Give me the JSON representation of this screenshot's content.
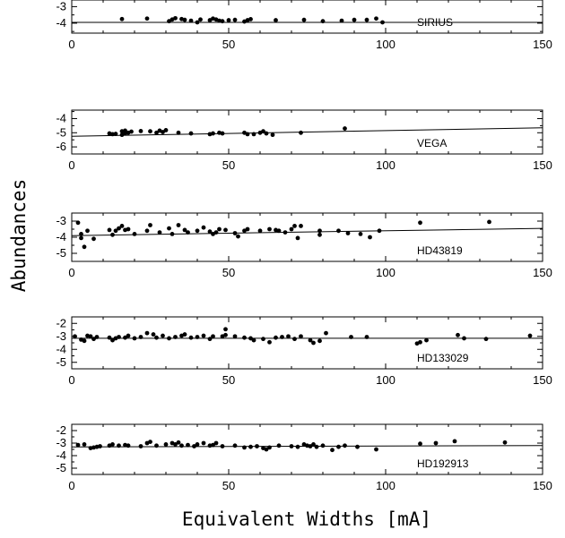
{
  "figure": {
    "ylabel": "Abundances",
    "xlabel": "Equivalent Widths [mA]"
  },
  "chart_data": [
    {
      "type": "scatter",
      "label": "SIRIUS",
      "xlim": [
        0,
        150
      ],
      "ylim": [
        -4.6,
        -2.6
      ],
      "xticks": [
        0,
        50,
        100,
        150
      ],
      "yticks": [
        -3,
        -4
      ],
      "fit": {
        "x": [
          0,
          150
        ],
        "y": [
          -3.95,
          -3.95
        ]
      },
      "points": [
        [
          16,
          -3.75
        ],
        [
          24,
          -3.72
        ],
        [
          31,
          -3.88
        ],
        [
          32,
          -3.78
        ],
        [
          33,
          -3.7
        ],
        [
          35,
          -3.75
        ],
        [
          36,
          -3.8
        ],
        [
          38,
          -3.85
        ],
        [
          40,
          -3.95
        ],
        [
          41,
          -3.78
        ],
        [
          44,
          -3.82
        ],
        [
          45,
          -3.72
        ],
        [
          46,
          -3.78
        ],
        [
          47,
          -3.85
        ],
        [
          48,
          -3.88
        ],
        [
          50,
          -3.82
        ],
        [
          52,
          -3.8
        ],
        [
          55,
          -3.9
        ],
        [
          56,
          -3.82
        ],
        [
          57,
          -3.76
        ],
        [
          65,
          -3.82
        ],
        [
          74,
          -3.8
        ],
        [
          80,
          -3.88
        ],
        [
          86,
          -3.85
        ],
        [
          90,
          -3.8
        ],
        [
          94,
          -3.8
        ],
        [
          97,
          -3.72
        ],
        [
          99,
          -3.95
        ]
      ]
    },
    {
      "type": "scatter",
      "label": "VEGA",
      "xlim": [
        0,
        150
      ],
      "ylim": [
        -6.5,
        -3.4
      ],
      "xticks": [
        0,
        50,
        100,
        150
      ],
      "yticks": [
        -4,
        -5,
        -6
      ],
      "fit": {
        "x": [
          0,
          150
        ],
        "y": [
          -5.25,
          -4.65
        ]
      },
      "points": [
        [
          12,
          -5.05
        ],
        [
          13,
          -5.1
        ],
        [
          14,
          -5.08
        ],
        [
          16,
          -5.15
        ],
        [
          16,
          -4.9
        ],
        [
          17,
          -5.05
        ],
        [
          17,
          -4.85
        ],
        [
          18,
          -5.0
        ],
        [
          19,
          -4.92
        ],
        [
          22,
          -4.88
        ],
        [
          25,
          -4.9
        ],
        [
          27,
          -5.0
        ],
        [
          28,
          -4.85
        ],
        [
          29,
          -4.95
        ],
        [
          30,
          -4.82
        ],
        [
          34,
          -5.0
        ],
        [
          38,
          -5.05
        ],
        [
          44,
          -5.1
        ],
        [
          45,
          -5.05
        ],
        [
          47,
          -5.0
        ],
        [
          48,
          -5.05
        ],
        [
          55,
          -5.0
        ],
        [
          56,
          -5.1
        ],
        [
          58,
          -5.1
        ],
        [
          60,
          -5.0
        ],
        [
          61,
          -4.9
        ],
        [
          62,
          -5.05
        ],
        [
          64,
          -5.15
        ],
        [
          73,
          -5.0
        ],
        [
          87,
          -4.7
        ]
      ]
    },
    {
      "type": "scatter",
      "label": "HD43819",
      "xlim": [
        0,
        150
      ],
      "ylim": [
        -5.5,
        -2.5
      ],
      "xticks": [
        0,
        50,
        100,
        150
      ],
      "yticks": [
        -3,
        -4,
        -5
      ],
      "fit": {
        "x": [
          0,
          150
        ],
        "y": [
          -3.9,
          -3.45
        ]
      },
      "points": [
        [
          2,
          -3.1
        ],
        [
          3,
          -3.8
        ],
        [
          3,
          -4.05
        ],
        [
          4,
          -4.6
        ],
        [
          5,
          -3.6
        ],
        [
          7,
          -4.1
        ],
        [
          12,
          -3.55
        ],
        [
          13,
          -3.85
        ],
        [
          14,
          -3.6
        ],
        [
          15,
          -3.45
        ],
        [
          16,
          -3.3
        ],
        [
          17,
          -3.55
        ],
        [
          18,
          -3.5
        ],
        [
          20,
          -3.8
        ],
        [
          24,
          -3.6
        ],
        [
          25,
          -3.25
        ],
        [
          28,
          -3.7
        ],
        [
          31,
          -3.45
        ],
        [
          32,
          -3.8
        ],
        [
          34,
          -3.25
        ],
        [
          36,
          -3.55
        ],
        [
          37,
          -3.7
        ],
        [
          40,
          -3.6
        ],
        [
          42,
          -3.4
        ],
        [
          44,
          -3.65
        ],
        [
          45,
          -3.8
        ],
        [
          46,
          -3.7
        ],
        [
          47,
          -3.5
        ],
        [
          49,
          -3.55
        ],
        [
          52,
          -3.75
        ],
        [
          53,
          -3.95
        ],
        [
          55,
          -3.6
        ],
        [
          56,
          -3.5
        ],
        [
          60,
          -3.6
        ],
        [
          63,
          -3.5
        ],
        [
          65,
          -3.55
        ],
        [
          66,
          -3.6
        ],
        [
          68,
          -3.7
        ],
        [
          70,
          -3.5
        ],
        [
          71,
          -3.3
        ],
        [
          72,
          -4.05
        ],
        [
          73,
          -3.3
        ],
        [
          79,
          -3.6
        ],
        [
          79,
          -3.85
        ],
        [
          85,
          -3.6
        ],
        [
          88,
          -3.75
        ],
        [
          92,
          -3.8
        ],
        [
          95,
          -4.0
        ],
        [
          98,
          -3.6
        ],
        [
          111,
          -3.1
        ],
        [
          133,
          -3.05
        ]
      ]
    },
    {
      "type": "scatter",
      "label": "HD133029",
      "xlim": [
        0,
        150
      ],
      "ylim": [
        -5.5,
        -1.5
      ],
      "xticks": [
        0,
        50,
        100,
        150
      ],
      "yticks": [
        -2,
        -3,
        -4,
        -5
      ],
      "fit": {
        "x": [
          0,
          150
        ],
        "y": [
          -3.15,
          -3.15
        ]
      },
      "points": [
        [
          1,
          -3.0
        ],
        [
          3,
          -3.25
        ],
        [
          4,
          -3.35
        ],
        [
          5,
          -2.95
        ],
        [
          6,
          -3.0
        ],
        [
          7,
          -3.2
        ],
        [
          8,
          -3.05
        ],
        [
          12,
          -3.1
        ],
        [
          13,
          -3.3
        ],
        [
          14,
          -3.15
        ],
        [
          15,
          -3.05
        ],
        [
          17,
          -3.1
        ],
        [
          18,
          -2.95
        ],
        [
          20,
          -3.15
        ],
        [
          22,
          -3.05
        ],
        [
          24,
          -2.75
        ],
        [
          26,
          -2.85
        ],
        [
          27,
          -3.1
        ],
        [
          29,
          -2.95
        ],
        [
          31,
          -3.15
        ],
        [
          33,
          -3.05
        ],
        [
          35,
          -2.95
        ],
        [
          36,
          -2.85
        ],
        [
          38,
          -3.1
        ],
        [
          40,
          -3.05
        ],
        [
          42,
          -2.95
        ],
        [
          44,
          -3.2
        ],
        [
          45,
          -3.0
        ],
        [
          48,
          -3.0
        ],
        [
          49,
          -2.45
        ],
        [
          49,
          -2.9
        ],
        [
          52,
          -3.0
        ],
        [
          55,
          -3.1
        ],
        [
          57,
          -3.15
        ],
        [
          58,
          -3.3
        ],
        [
          61,
          -3.2
        ],
        [
          63,
          -3.45
        ],
        [
          65,
          -3.1
        ],
        [
          67,
          -3.05
        ],
        [
          69,
          -3.0
        ],
        [
          71,
          -3.2
        ],
        [
          73,
          -3.0
        ],
        [
          76,
          -3.3
        ],
        [
          77,
          -3.5
        ],
        [
          79,
          -3.35
        ],
        [
          81,
          -2.75
        ],
        [
          89,
          -3.05
        ],
        [
          94,
          -3.05
        ],
        [
          110,
          -3.55
        ],
        [
          111,
          -3.45
        ],
        [
          113,
          -3.3
        ],
        [
          123,
          -2.9
        ],
        [
          125,
          -3.15
        ],
        [
          132,
          -3.2
        ],
        [
          146,
          -2.95
        ]
      ]
    },
    {
      "type": "scatter",
      "label": "HD192913",
      "xlim": [
        0,
        150
      ],
      "ylim": [
        -5.5,
        -1.5
      ],
      "xticks": [
        0,
        50,
        100,
        150
      ],
      "yticks": [
        -2,
        -3,
        -4,
        -5
      ],
      "fit": {
        "x": [
          0,
          150
        ],
        "y": [
          -3.3,
          -3.2
        ]
      },
      "points": [
        [
          2,
          -3.15
        ],
        [
          4,
          -3.1
        ],
        [
          6,
          -3.4
        ],
        [
          7,
          -3.35
        ],
        [
          8,
          -3.3
        ],
        [
          9,
          -3.25
        ],
        [
          12,
          -3.2
        ],
        [
          13,
          -3.1
        ],
        [
          15,
          -3.2
        ],
        [
          17,
          -3.15
        ],
        [
          18,
          -3.2
        ],
        [
          22,
          -3.25
        ],
        [
          24,
          -3.0
        ],
        [
          25,
          -2.9
        ],
        [
          27,
          -3.2
        ],
        [
          30,
          -3.1
        ],
        [
          32,
          -3.0
        ],
        [
          33,
          -3.1
        ],
        [
          34,
          -2.95
        ],
        [
          35,
          -3.2
        ],
        [
          37,
          -3.15
        ],
        [
          39,
          -3.25
        ],
        [
          40,
          -3.1
        ],
        [
          42,
          -3.0
        ],
        [
          44,
          -3.2
        ],
        [
          45,
          -3.15
        ],
        [
          46,
          -3.0
        ],
        [
          48,
          -3.25
        ],
        [
          52,
          -3.2
        ],
        [
          55,
          -3.35
        ],
        [
          57,
          -3.3
        ],
        [
          59,
          -3.25
        ],
        [
          61,
          -3.4
        ],
        [
          62,
          -3.5
        ],
        [
          63,
          -3.35
        ],
        [
          66,
          -3.2
        ],
        [
          70,
          -3.25
        ],
        [
          72,
          -3.3
        ],
        [
          74,
          -3.1
        ],
        [
          75,
          -3.2
        ],
        [
          76,
          -3.25
        ],
        [
          77,
          -3.1
        ],
        [
          78,
          -3.3
        ],
        [
          80,
          -3.2
        ],
        [
          83,
          -3.55
        ],
        [
          85,
          -3.3
        ],
        [
          87,
          -3.2
        ],
        [
          91,
          -3.3
        ],
        [
          97,
          -3.5
        ],
        [
          111,
          -3.05
        ],
        [
          116,
          -3.0
        ],
        [
          122,
          -2.85
        ],
        [
          138,
          -2.95
        ]
      ]
    }
  ]
}
